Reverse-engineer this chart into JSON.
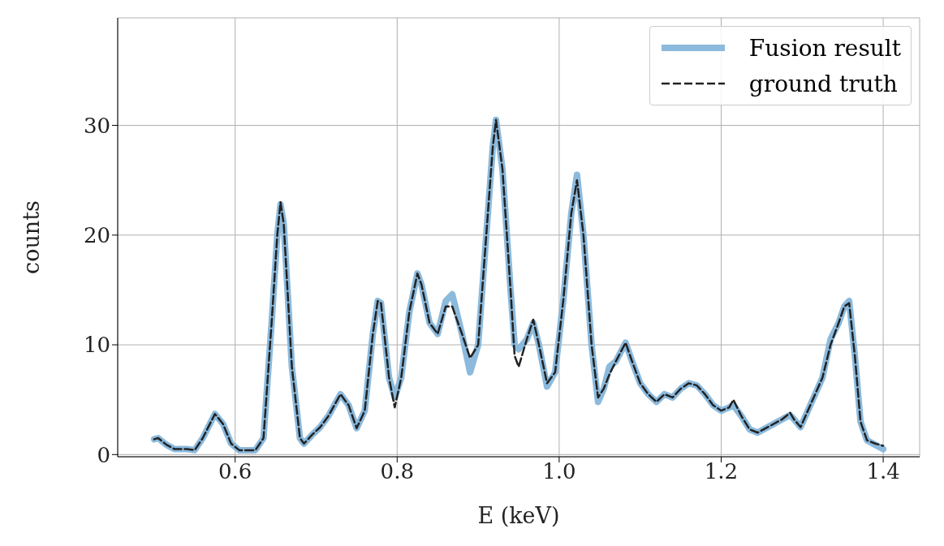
{
  "chart_data": {
    "type": "line",
    "xlabel": "E (keV)",
    "ylabel": "counts",
    "xlim": [
      0.455,
      1.445
    ],
    "xticks": [
      {
        "value": 0.6,
        "label": "0.6"
      },
      {
        "value": 0.8,
        "label": "0.8"
      },
      {
        "value": 1.0,
        "label": "1.0"
      },
      {
        "value": 1.2,
        "label": "1.2"
      },
      {
        "value": 1.4,
        "label": "1.4"
      }
    ],
    "ylim": [
      -0.2,
      39.8
    ],
    "yticks": [
      0,
      10,
      20,
      30
    ],
    "grid": true,
    "legend": "top right",
    "x": [
      0.5,
      0.505,
      0.515,
      0.525,
      0.54,
      0.55,
      0.56,
      0.575,
      0.585,
      0.595,
      0.605,
      0.625,
      0.635,
      0.645,
      0.652,
      0.656,
      0.66,
      0.67,
      0.68,
      0.685,
      0.695,
      0.705,
      0.715,
      0.73,
      0.74,
      0.75,
      0.76,
      0.77,
      0.776,
      0.78,
      0.79,
      0.797,
      0.805,
      0.815,
      0.825,
      0.83,
      0.84,
      0.85,
      0.86,
      0.868,
      0.88,
      0.89,
      0.9,
      0.91,
      0.918,
      0.922,
      0.93,
      0.94,
      0.945,
      0.95,
      0.96,
      0.968,
      0.975,
      0.985,
      0.995,
      1.005,
      1.015,
      1.022,
      1.03,
      1.04,
      1.048,
      1.055,
      1.062,
      1.07,
      1.082,
      1.09,
      1.1,
      1.11,
      1.12,
      1.13,
      1.14,
      1.15,
      1.16,
      1.17,
      1.18,
      1.19,
      1.2,
      1.21,
      1.215,
      1.225,
      1.235,
      1.245,
      1.26,
      1.275,
      1.285,
      1.29,
      1.298,
      1.31,
      1.325,
      1.335,
      1.345,
      1.352,
      1.358,
      1.365,
      1.372,
      1.38,
      1.39,
      1.4
    ],
    "series": [
      {
        "name": "Fusion result",
        "color": "#8bbadd",
        "line_style": "solid",
        "values": [
          1.4,
          1.5,
          0.9,
          0.5,
          0.5,
          0.4,
          1.5,
          3.7,
          2.8,
          1.0,
          0.4,
          0.4,
          1.5,
          12,
          20,
          22.8,
          21,
          8,
          1.5,
          1.0,
          1.8,
          2.5,
          3.5,
          5.5,
          4.5,
          2.4,
          4,
          11,
          14,
          13.8,
          7,
          5.2,
          7,
          13,
          16.5,
          15.5,
          12,
          11,
          14,
          14.6,
          11,
          7.5,
          10,
          20,
          28,
          30.5,
          26,
          15,
          10,
          9.6,
          10.5,
          12,
          10,
          6.2,
          7.5,
          14,
          22,
          25.5,
          20,
          10,
          4.8,
          6,
          8,
          8.5,
          10.2,
          8.5,
          6.5,
          5.5,
          4.8,
          5.5,
          5.2,
          6,
          6.5,
          6.3,
          5.5,
          4.5,
          4.0,
          4.3,
          4.5,
          3.5,
          2.3,
          2.0,
          2.6,
          3.2,
          3.6,
          3.2,
          2.5,
          4.5,
          7,
          10.5,
          12,
          13.5,
          14,
          9,
          3,
          1.3,
          0.9,
          0.5
        ]
      },
      {
        "name": "ground truth",
        "color": "#222222",
        "line_style": "dashed",
        "values": [
          1.4,
          1.5,
          0.9,
          0.5,
          0.5,
          0.4,
          1.5,
          3.7,
          2.8,
          1.0,
          0.4,
          0.4,
          1.5,
          12,
          20,
          23,
          21,
          8,
          1.5,
          1.0,
          1.8,
          2.5,
          3.5,
          5.5,
          4.5,
          2.4,
          4,
          11,
          14,
          13.8,
          7,
          4.3,
          7,
          13,
          16.5,
          15.5,
          12,
          11,
          13.5,
          13.5,
          11,
          8.8,
          10,
          20,
          28,
          30.5,
          26,
          15,
          9,
          8,
          10.5,
          12.3,
          10,
          6.5,
          7.5,
          14,
          22,
          25,
          20,
          10,
          5.2,
          6,
          7.3,
          8.5,
          10.2,
          8.5,
          6.5,
          5.5,
          4.8,
          5.5,
          5.2,
          6,
          6.5,
          6.3,
          5.5,
          4.5,
          4.0,
          4.3,
          5.0,
          3.5,
          2.3,
          2.0,
          2.6,
          3.2,
          3.8,
          3.2,
          2.5,
          4.5,
          7,
          10,
          12,
          13.5,
          13.8,
          9,
          3,
          1.3,
          1.0,
          0.8
        ]
      }
    ]
  }
}
